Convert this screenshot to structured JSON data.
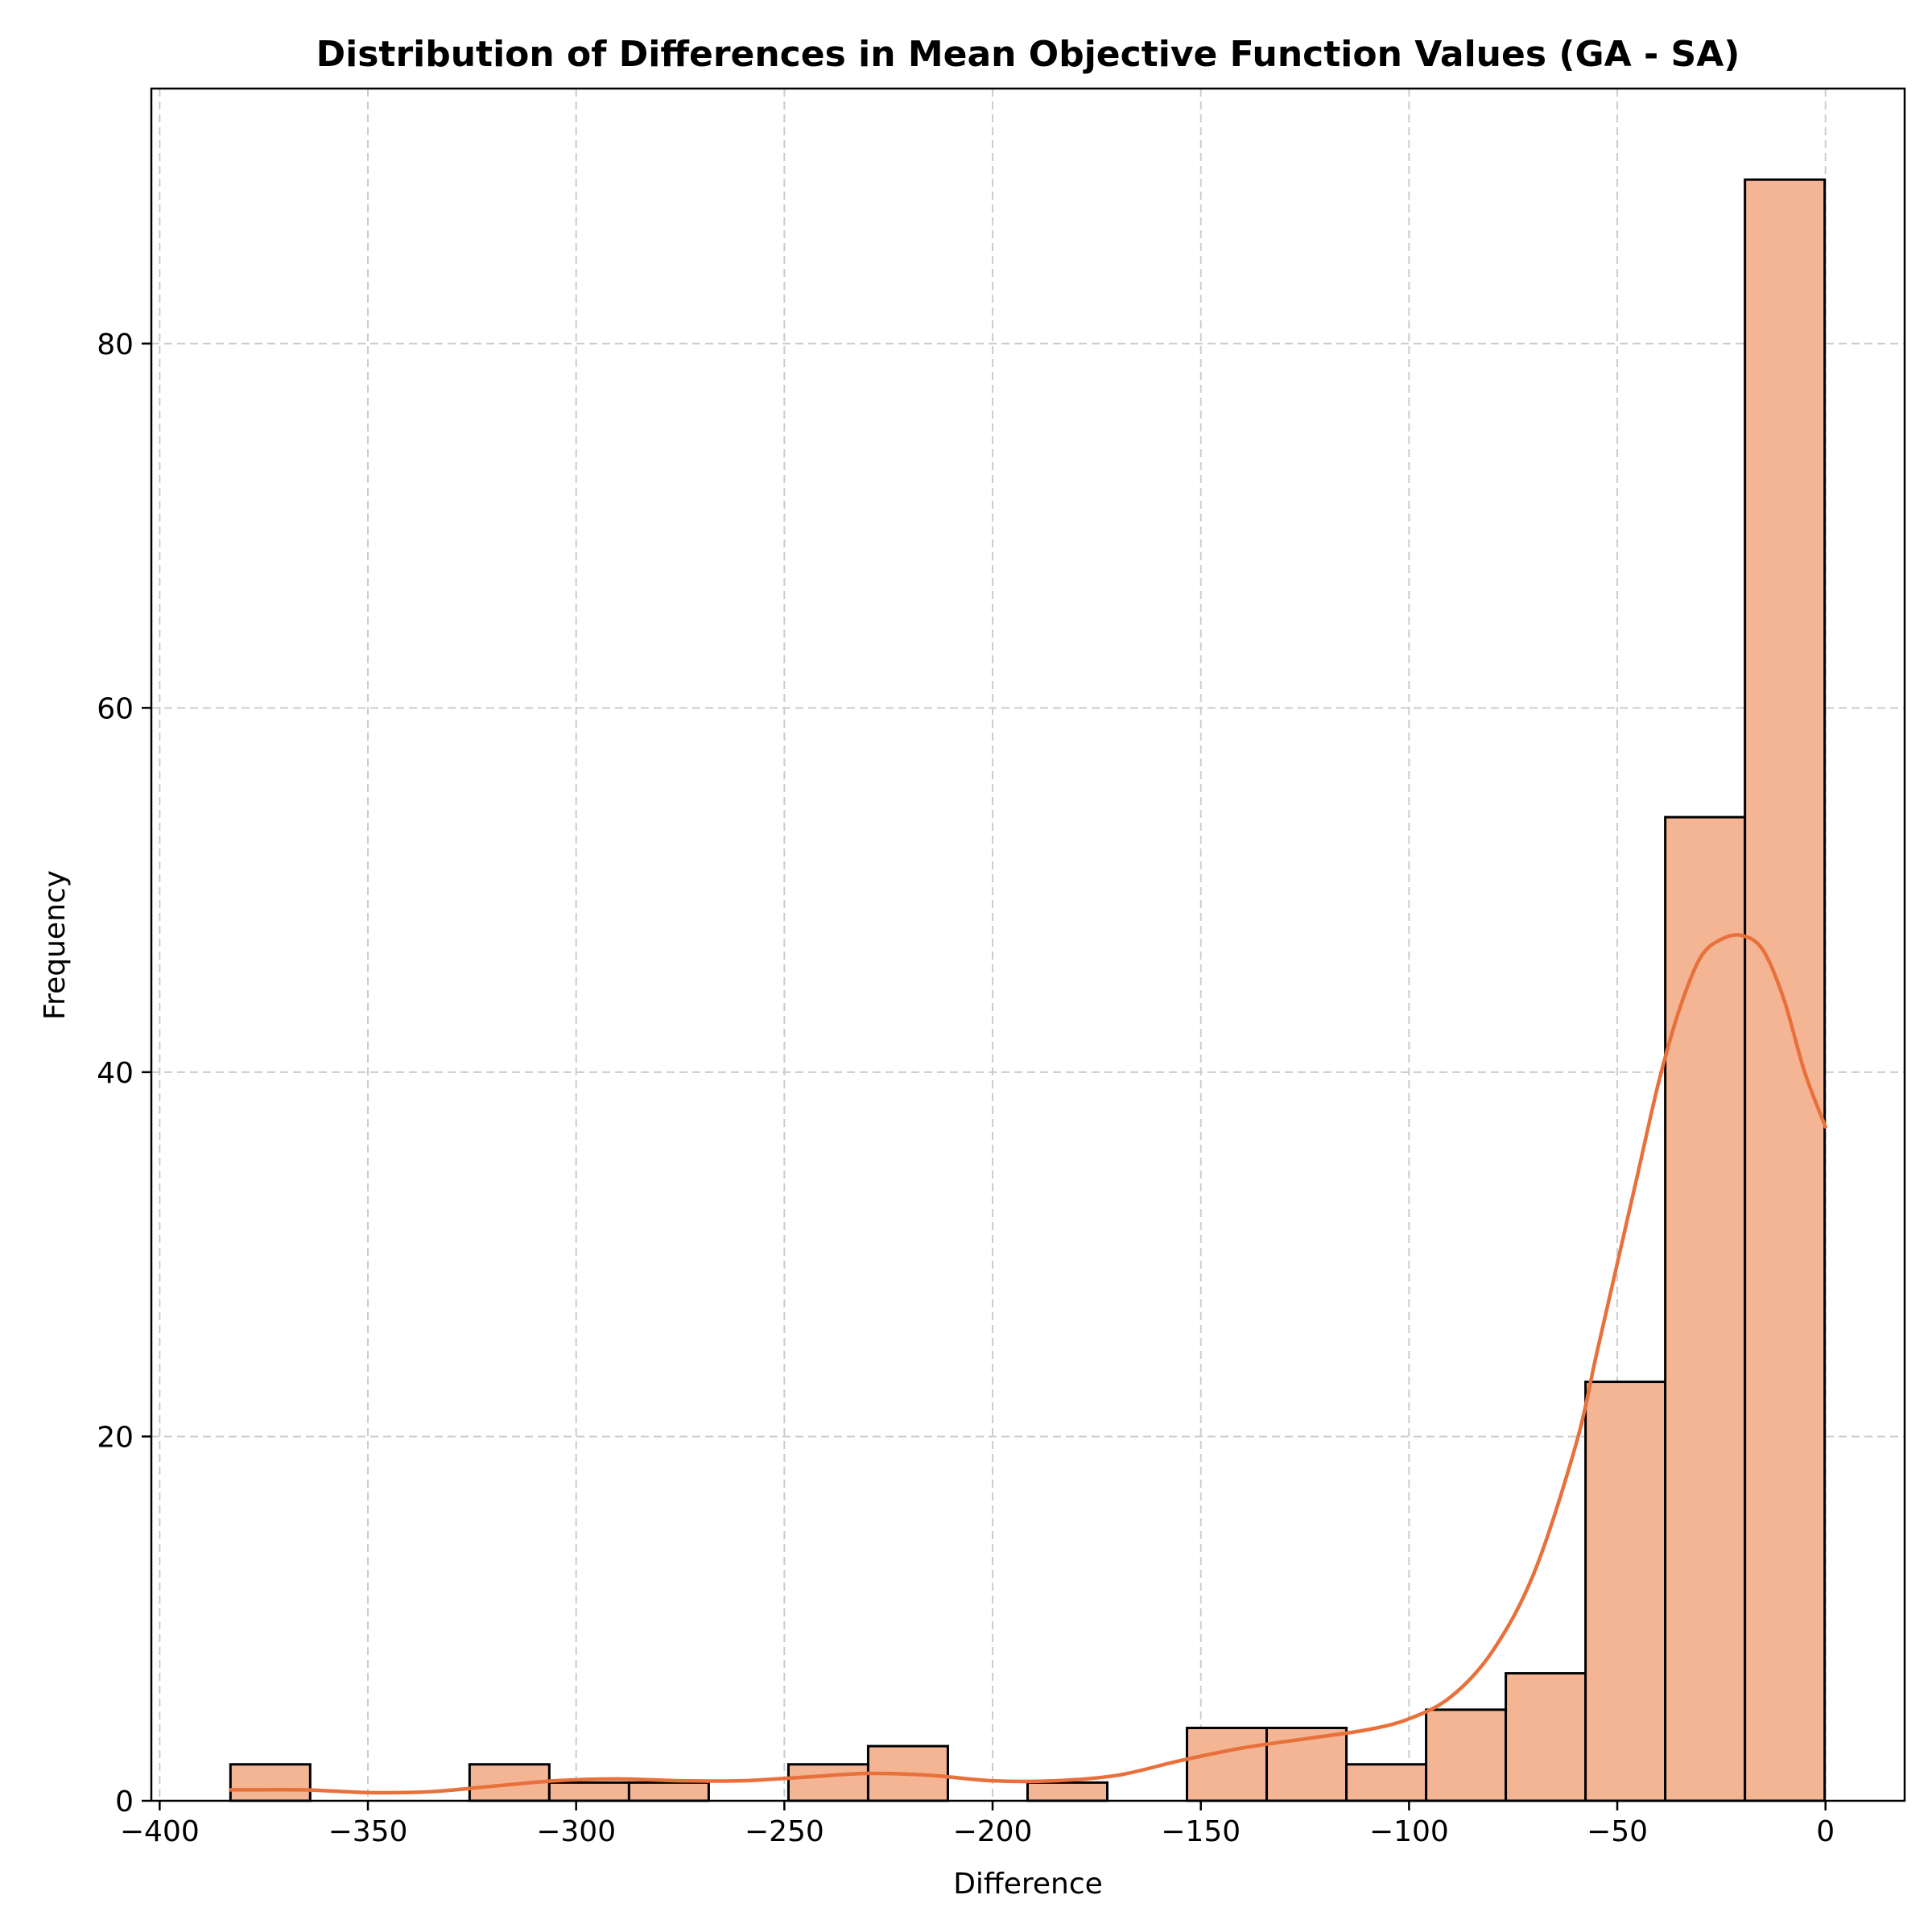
{
  "colors": {
    "bar_fill": "#f4b595",
    "bar_edge": "#000000",
    "kde_line": "#e8703a",
    "grid": "#cccccc",
    "background": "#ffffff"
  },
  "chart_data": {
    "type": "bar",
    "subtype": "histogram",
    "title": "Distribution of Differences in Mean Objective Function Values (GA - SA)",
    "xlabel": "Difference",
    "ylabel": "Frequency",
    "xlim": [
      -402,
      19
    ],
    "ylim": [
      0,
      94
    ],
    "xticks": [
      -400,
      -350,
      -300,
      -250,
      -200,
      -150,
      -100,
      -50,
      0
    ],
    "xtick_labels": [
      "−400",
      "−350",
      "−300",
      "−250",
      "−200",
      "−150",
      "−100",
      "−50",
      "0"
    ],
    "yticks": [
      0,
      20,
      40,
      60,
      80
    ],
    "ytick_labels": [
      "0",
      "20",
      "40",
      "60",
      "80"
    ],
    "grid": true,
    "legend": "none",
    "bins": {
      "start": -383.0,
      "width": 19.14,
      "counts": [
        2,
        0,
        0,
        2,
        1,
        1,
        0,
        2,
        3,
        0,
        1,
        0,
        4,
        4,
        2,
        5,
        7,
        23,
        54,
        89
      ]
    },
    "kde": {
      "x": [
        -383,
        -365,
        -350,
        -335,
        -320,
        -305,
        -290,
        -275,
        -260,
        -245,
        -230,
        -215,
        -200,
        -185,
        -170,
        -155,
        -140,
        -125,
        -110,
        -100,
        -90,
        -80,
        -70,
        -60,
        -55,
        -50,
        -45,
        -40,
        -35,
        -30,
        -25,
        -20,
        -15,
        -10,
        -5,
        0
      ],
      "y": [
        0.6,
        0.6,
        0.45,
        0.5,
        0.8,
        1.1,
        1.2,
        1.1,
        1.1,
        1.3,
        1.5,
        1.4,
        1.1,
        1.1,
        1.4,
        2.2,
        2.9,
        3.4,
        3.9,
        4.5,
        5.7,
        8.2,
        12.5,
        19.5,
        24.5,
        29.5,
        34.5,
        39.5,
        43.5,
        46.3,
        47.3,
        47.5,
        46.7,
        44.0,
        40.0,
        37.0
      ]
    }
  }
}
